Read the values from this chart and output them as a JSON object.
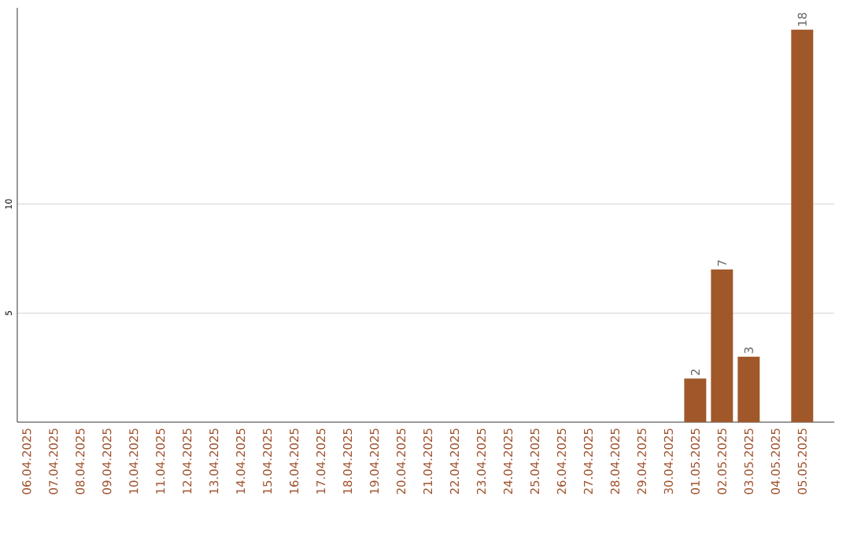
{
  "chart_data": {
    "type": "bar",
    "categories": [
      "06.04.2025",
      "07.04.2025",
      "08.04.2025",
      "09.04.2025",
      "10.04.2025",
      "11.04.2025",
      "12.04.2025",
      "13.04.2025",
      "14.04.2025",
      "15.04.2025",
      "16.04.2025",
      "17.04.2025",
      "18.04.2025",
      "19.04.2025",
      "20.04.2025",
      "21.04.2025",
      "22.04.2025",
      "23.04.2025",
      "24.04.2025",
      "25.04.2025",
      "26.04.2025",
      "27.04.2025",
      "28.04.2025",
      "29.04.2025",
      "30.04.2025",
      "01.05.2025",
      "02.05.2025",
      "03.05.2025",
      "04.05.2025",
      "05.05.2025"
    ],
    "values": [
      0,
      0,
      0,
      0,
      0,
      0,
      0,
      0,
      0,
      0,
      0,
      0,
      0,
      0,
      0,
      0,
      0,
      0,
      0,
      0,
      0,
      0,
      0,
      0,
      0,
      2,
      7,
      3,
      0,
      18
    ],
    "value_labels": [
      null,
      null,
      null,
      null,
      null,
      null,
      null,
      null,
      null,
      null,
      null,
      null,
      null,
      null,
      null,
      null,
      null,
      null,
      null,
      null,
      null,
      null,
      null,
      null,
      null,
      "2",
      "7",
      "3",
      null,
      "18"
    ],
    "color": "#a0582a",
    "ylim": [
      0,
      19
    ],
    "yticks": [
      5,
      10
    ],
    "grid": "y"
  }
}
